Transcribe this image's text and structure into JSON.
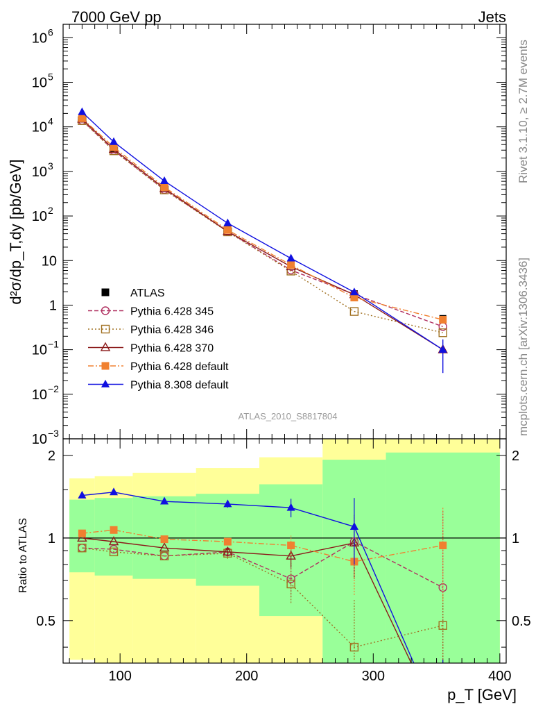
{
  "header": {
    "left": "7000 GeV pp",
    "right": "Jets",
    "side_rivet": "Rivet 3.1.10, ≥ 2.7M events",
    "side_mcplots": "mcplots.cern.ch [arXiv:1306.3436]",
    "analysis_id": "ATLAS_2010_S8817804"
  },
  "chart_data": [
    {
      "type": "line",
      "yscale": "log",
      "ylabel": "d²σ/dp_T,dy [pb/GeV]",
      "xlim": [
        55,
        405
      ],
      "ylim": [
        0.001,
        2000000
      ],
      "yticks": [
        {
          "v": 1000000,
          "b": "10",
          "e": "6"
        },
        {
          "v": 100000,
          "b": "10",
          "e": "5"
        },
        {
          "v": 10000,
          "b": "10",
          "e": "4"
        },
        {
          "v": 1000,
          "b": "10",
          "e": "3"
        },
        {
          "v": 100,
          "b": "10",
          "e": "2"
        },
        {
          "v": 10,
          "b": "10",
          "e": ""
        },
        {
          "v": 1,
          "b": "1",
          "e": ""
        },
        {
          "v": 0.1,
          "b": "10",
          "e": "−1"
        },
        {
          "v": 0.01,
          "b": "10",
          "e": "−2"
        },
        {
          "v": 0.001,
          "b": "10",
          "e": "−3"
        }
      ],
      "x": [
        70,
        95,
        135,
        185,
        235,
        285,
        355
      ],
      "series": [
        {
          "name": "ATLAS",
          "color": "#000000",
          "marker": "square-filled",
          "dash": "none",
          "values": [
            15000,
            3250,
            450,
            50,
            8.5,
            1.8,
            0.5
          ]
        },
        {
          "name": "Pythia 6.428 345",
          "color": "#b03060",
          "marker": "circle-open",
          "dash": "6,3",
          "values": [
            14000,
            2950,
            390,
            45,
            6.1,
            1.75,
            0.33
          ]
        },
        {
          "name": "Pythia 6.428 346",
          "color": "#a07020",
          "marker": "square-open",
          "dash": "2,3",
          "values": [
            13800,
            2900,
            385,
            44,
            5.8,
            0.72,
            0.24
          ]
        },
        {
          "name": "Pythia 6.428 370",
          "color": "#8b1a1a",
          "marker": "triangle-open",
          "dash": "none",
          "values": [
            15000,
            3150,
            415,
            45,
            7.3,
            1.72,
            0.1
          ]
        },
        {
          "name": "Pythia 6.428 default",
          "color": "#f08030",
          "marker": "square-filled",
          "dash": "8,3,2,3",
          "values": [
            15600,
            3500,
            445,
            48.5,
            8.0,
            1.48,
            0.47
          ]
        },
        {
          "name": "Pythia 8.308 default",
          "color": "#1010e0",
          "marker": "triangle-filled",
          "dash": "none",
          "values": [
            21500,
            4600,
            610,
            69,
            11.2,
            1.95,
            0.1
          ]
        }
      ]
    },
    {
      "type": "line",
      "ylabel": "Ratio to ATLAS",
      "xlabel": "p_T [GeV]",
      "xlim": [
        55,
        405
      ],
      "ylim": [
        0.35,
        2.3
      ],
      "yticks": [
        0.5,
        1,
        2
      ],
      "xticks": [
        100,
        200,
        300,
        400
      ],
      "band_edges": [
        60,
        80,
        110,
        160,
        210,
        260,
        310,
        400
      ],
      "band_green": [
        [
          0.75,
          1.38
        ],
        [
          0.73,
          1.4
        ],
        [
          0.71,
          1.42
        ],
        [
          0.67,
          1.45
        ],
        [
          0.52,
          1.57
        ],
        [
          0.35,
          1.93
        ],
        [
          0.35,
          2.05
        ]
      ],
      "band_yellow": [
        [
          0.36,
          1.65
        ],
        [
          0.35,
          1.68
        ],
        [
          0.35,
          1.73
        ],
        [
          0.35,
          1.8
        ],
        [
          0.35,
          1.97
        ],
        [
          0.35,
          2.3
        ],
        [
          0.35,
          2.3
        ]
      ],
      "series": [
        {
          "name": "Pythia 6.428 345",
          "color": "#b03060",
          "marker": "circle-open",
          "dash": "6,3",
          "values": [
            0.92,
            0.91,
            0.86,
            0.89,
            0.71,
            0.97,
            0.66
          ],
          "err": [
            0.01,
            0.01,
            0.01,
            0.04,
            0.1,
            0.25,
            0.6
          ]
        },
        {
          "name": "Pythia 6.428 346",
          "color": "#a07020",
          "marker": "square-open",
          "dash": "2,3",
          "values": [
            0.92,
            0.89,
            0.86,
            0.88,
            0.68,
            0.4,
            0.48
          ],
          "err": [
            0.01,
            0.01,
            0.01,
            0.04,
            0.1,
            0.2,
            0.15
          ]
        },
        {
          "name": "Pythia 6.428 370",
          "color": "#8b1a1a",
          "marker": "triangle-open",
          "dash": "none",
          "values": [
            1.0,
            0.97,
            0.92,
            0.89,
            0.86,
            0.96,
            0.2
          ],
          "err": [
            0.01,
            0.01,
            0.01,
            0.03,
            0.08,
            0.25,
            0.1
          ]
        },
        {
          "name": "Pythia 6.428 default",
          "color": "#f08030",
          "marker": "square-filled",
          "dash": "8,3,2,3",
          "values": [
            1.04,
            1.07,
            0.99,
            0.97,
            0.94,
            0.82,
            0.94
          ],
          "err": [
            0.01,
            0.01,
            0.01,
            0.03,
            0.08,
            0.2,
            0.35
          ]
        },
        {
          "name": "Pythia 8.308 default",
          "color": "#1010e0",
          "marker": "triangle-filled",
          "dash": "none",
          "values": [
            1.43,
            1.47,
            1.36,
            1.33,
            1.29,
            1.1,
            0.2
          ],
          "err": [
            0.01,
            0.01,
            0.01,
            0.04,
            0.1,
            0.3,
            0.1
          ]
        }
      ]
    }
  ]
}
